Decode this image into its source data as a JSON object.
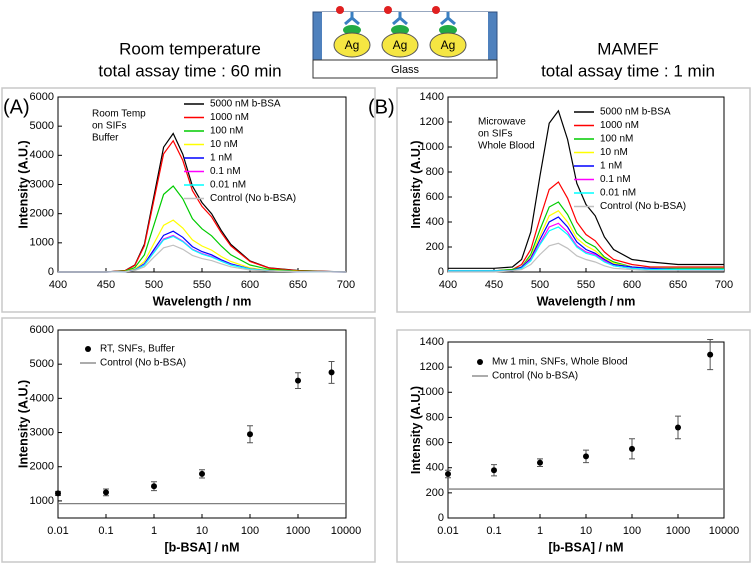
{
  "header": {
    "left_title": "Room temperature",
    "left_subtitle": "total assay time : 60 min",
    "right_title": "MAMEF",
    "right_subtitle": "total assay time : 1 min",
    "particles": [
      "Ag",
      "Ag",
      "Ag"
    ],
    "substrate": "Glass",
    "panel_labels": [
      "(A)",
      "(B)"
    ]
  },
  "chart_data": [
    {
      "type": "line",
      "xlabel": "Wavelength / nm",
      "ylabel": "Intensity (A.U.)",
      "annotation": [
        "Room Temp",
        "on SIFs",
        "Buffer"
      ],
      "xlim": [
        400,
        700
      ],
      "xticks": [
        400,
        450,
        500,
        550,
        600,
        650,
        700
      ],
      "ylim": [
        0,
        6000
      ],
      "yticks": [
        0,
        1000,
        2000,
        3000,
        4000,
        5000,
        6000
      ],
      "x": [
        400,
        450,
        470,
        480,
        490,
        500,
        510,
        520,
        530,
        540,
        550,
        560,
        570,
        580,
        600,
        620,
        650,
        700
      ],
      "series": [
        {
          "name": "5000 nM b-BSA",
          "color": "#000000",
          "values": [
            0,
            0,
            50,
            240,
            950,
            2610,
            4280,
            4750,
            4040,
            2950,
            2380,
            2000,
            1430,
            950,
            380,
            140,
            50,
            0
          ]
        },
        {
          "name": "1000 nM",
          "color": "#ff0000",
          "values": [
            0,
            0,
            45,
            225,
            900,
            2475,
            4050,
            4500,
            3825,
            2790,
            2250,
            1890,
            1350,
            900,
            360,
            135,
            45,
            0
          ]
        },
        {
          "name": "100 nM",
          "color": "#00cc00",
          "values": [
            0,
            0,
            30,
            150,
            590,
            1620,
            2660,
            2950,
            2510,
            1830,
            1480,
            1240,
            890,
            590,
            240,
            90,
            30,
            0
          ]
        },
        {
          "name": "10 nM",
          "color": "#ffff00",
          "values": [
            0,
            0,
            20,
            90,
            360,
            980,
            1600,
            1780,
            1510,
            1100,
            890,
            750,
            530,
            360,
            140,
            50,
            20,
            0
          ]
        },
        {
          "name": "1 nM",
          "color": "#0000ff",
          "values": [
            0,
            0,
            10,
            70,
            280,
            770,
            1260,
            1400,
            1190,
            870,
            700,
            590,
            420,
            280,
            110,
            40,
            10,
            0
          ]
        },
        {
          "name": "0.1 nM",
          "color": "#ff00ff",
          "values": [
            0,
            0,
            10,
            60,
            250,
            690,
            1130,
            1250,
            1060,
            780,
            630,
            530,
            380,
            250,
            100,
            40,
            10,
            0
          ]
        },
        {
          "name": "0.01 nM",
          "color": "#00ffff",
          "values": [
            0,
            0,
            10,
            60,
            240,
            670,
            1100,
            1220,
            1040,
            760,
            610,
            510,
            370,
            240,
            100,
            40,
            10,
            0
          ]
        },
        {
          "name": "Control (No b-BSA)",
          "color": "#c0c0c0",
          "values": [
            0,
            0,
            10,
            50,
            180,
            510,
            830,
            920,
            780,
            570,
            460,
            390,
            280,
            180,
            70,
            30,
            10,
            0
          ]
        }
      ]
    },
    {
      "type": "line",
      "xlabel": "Wavelength / nm",
      "ylabel": "Intensity (A.U.)",
      "annotation": [
        "Microwave",
        "on SIFs",
        "Whole Blood"
      ],
      "xlim": [
        400,
        700
      ],
      "xticks": [
        400,
        450,
        500,
        550,
        600,
        650,
        700
      ],
      "ylim": [
        0,
        1400
      ],
      "yticks": [
        0,
        200,
        400,
        600,
        800,
        1000,
        1200,
        1400
      ],
      "x": [
        400,
        450,
        470,
        480,
        490,
        500,
        510,
        520,
        530,
        540,
        550,
        560,
        570,
        580,
        600,
        620,
        650,
        700
      ],
      "series": [
        {
          "name": "5000 nM b-BSA",
          "color": "#000000",
          "values": [
            30,
            30,
            40,
            100,
            320,
            770,
            1190,
            1290,
            1060,
            710,
            540,
            450,
            280,
            180,
            100,
            80,
            60,
            60
          ]
        },
        {
          "name": "1000 nM",
          "color": "#ff0000",
          "values": [
            10,
            10,
            20,
            60,
            180,
            430,
            660,
            720,
            590,
            400,
            300,
            250,
            160,
            100,
            60,
            40,
            40,
            40
          ]
        },
        {
          "name": "100 nM",
          "color": "#00cc00",
          "values": [
            10,
            10,
            20,
            40,
            140,
            340,
            520,
            560,
            460,
            310,
            240,
            200,
            120,
            80,
            40,
            30,
            30,
            30
          ]
        },
        {
          "name": "10 nM",
          "color": "#ffff00",
          "values": [
            10,
            10,
            10,
            40,
            120,
            290,
            450,
            490,
            400,
            270,
            210,
            170,
            110,
            70,
            40,
            30,
            20,
            20
          ]
        },
        {
          "name": "1 nM",
          "color": "#0000ff",
          "values": [
            10,
            10,
            10,
            40,
            110,
            260,
            400,
            440,
            360,
            240,
            180,
            150,
            100,
            60,
            40,
            30,
            20,
            20
          ]
        },
        {
          "name": "0.1 nM",
          "color": "#ff00ff",
          "values": [
            10,
            10,
            10,
            30,
            100,
            230,
            360,
            390,
            320,
            210,
            160,
            140,
            90,
            50,
            30,
            20,
            20,
            20
          ]
        },
        {
          "name": "0.01 nM",
          "color": "#00ffff",
          "values": [
            10,
            10,
            10,
            30,
            90,
            220,
            330,
            360,
            300,
            200,
            150,
            130,
            80,
            50,
            30,
            20,
            20,
            20
          ]
        },
        {
          "name": "Control (No b-BSA)",
          "color": "#c0c0c0",
          "values": [
            0,
            0,
            10,
            20,
            60,
            140,
            210,
            230,
            190,
            130,
            100,
            80,
            50,
            30,
            20,
            10,
            10,
            10
          ]
        }
      ]
    },
    {
      "type": "scatter",
      "xscale": "log",
      "xlabel": "[b-BSA] / nM",
      "ylabel": "Intensity (A.U.)",
      "xlim": [
        0.01,
        10000
      ],
      "xticks": [
        0.01,
        0.1,
        1,
        10,
        100,
        1000,
        10000
      ],
      "ylim": [
        500,
        6000
      ],
      "yticks": [
        1000,
        2000,
        3000,
        4000,
        5000,
        6000
      ],
      "x": [
        0.01,
        0.1,
        1,
        10,
        100,
        1000,
        5000
      ],
      "series": [
        {
          "name": "RT, SNFs, Buffer",
          "color": "#000000",
          "values": [
            1220,
            1250,
            1430,
            1790,
            2950,
            4520,
            4760
          ],
          "errors": [
            60,
            100,
            130,
            120,
            250,
            230,
            320
          ]
        }
      ],
      "control": {
        "name": "Control (No b-BSA)",
        "color": "#808080",
        "value": 920
      }
    },
    {
      "type": "scatter",
      "xscale": "log",
      "xlabel": "[b-BSA]  / nM",
      "ylabel": "Intensity (A.U.)",
      "xlim": [
        0.01,
        10000
      ],
      "xticks": [
        0.01,
        0.1,
        1,
        10,
        100,
        1000,
        10000
      ],
      "ylim": [
        0,
        1400
      ],
      "yticks": [
        0,
        200,
        400,
        600,
        800,
        1000,
        1200,
        1400
      ],
      "x": [
        0.01,
        0.1,
        1,
        10,
        100,
        1000,
        5000
      ],
      "series": [
        {
          "name": "Mw 1 min, SNFs, Whole Blood",
          "color": "#000000",
          "values": [
            350,
            380,
            440,
            490,
            550,
            720,
            1300
          ],
          "errors": [
            30,
            45,
            30,
            50,
            80,
            90,
            120
          ]
        }
      ],
      "control": {
        "name": "Control (No b-BSA)",
        "color": "#808080",
        "value": 230
      }
    }
  ]
}
